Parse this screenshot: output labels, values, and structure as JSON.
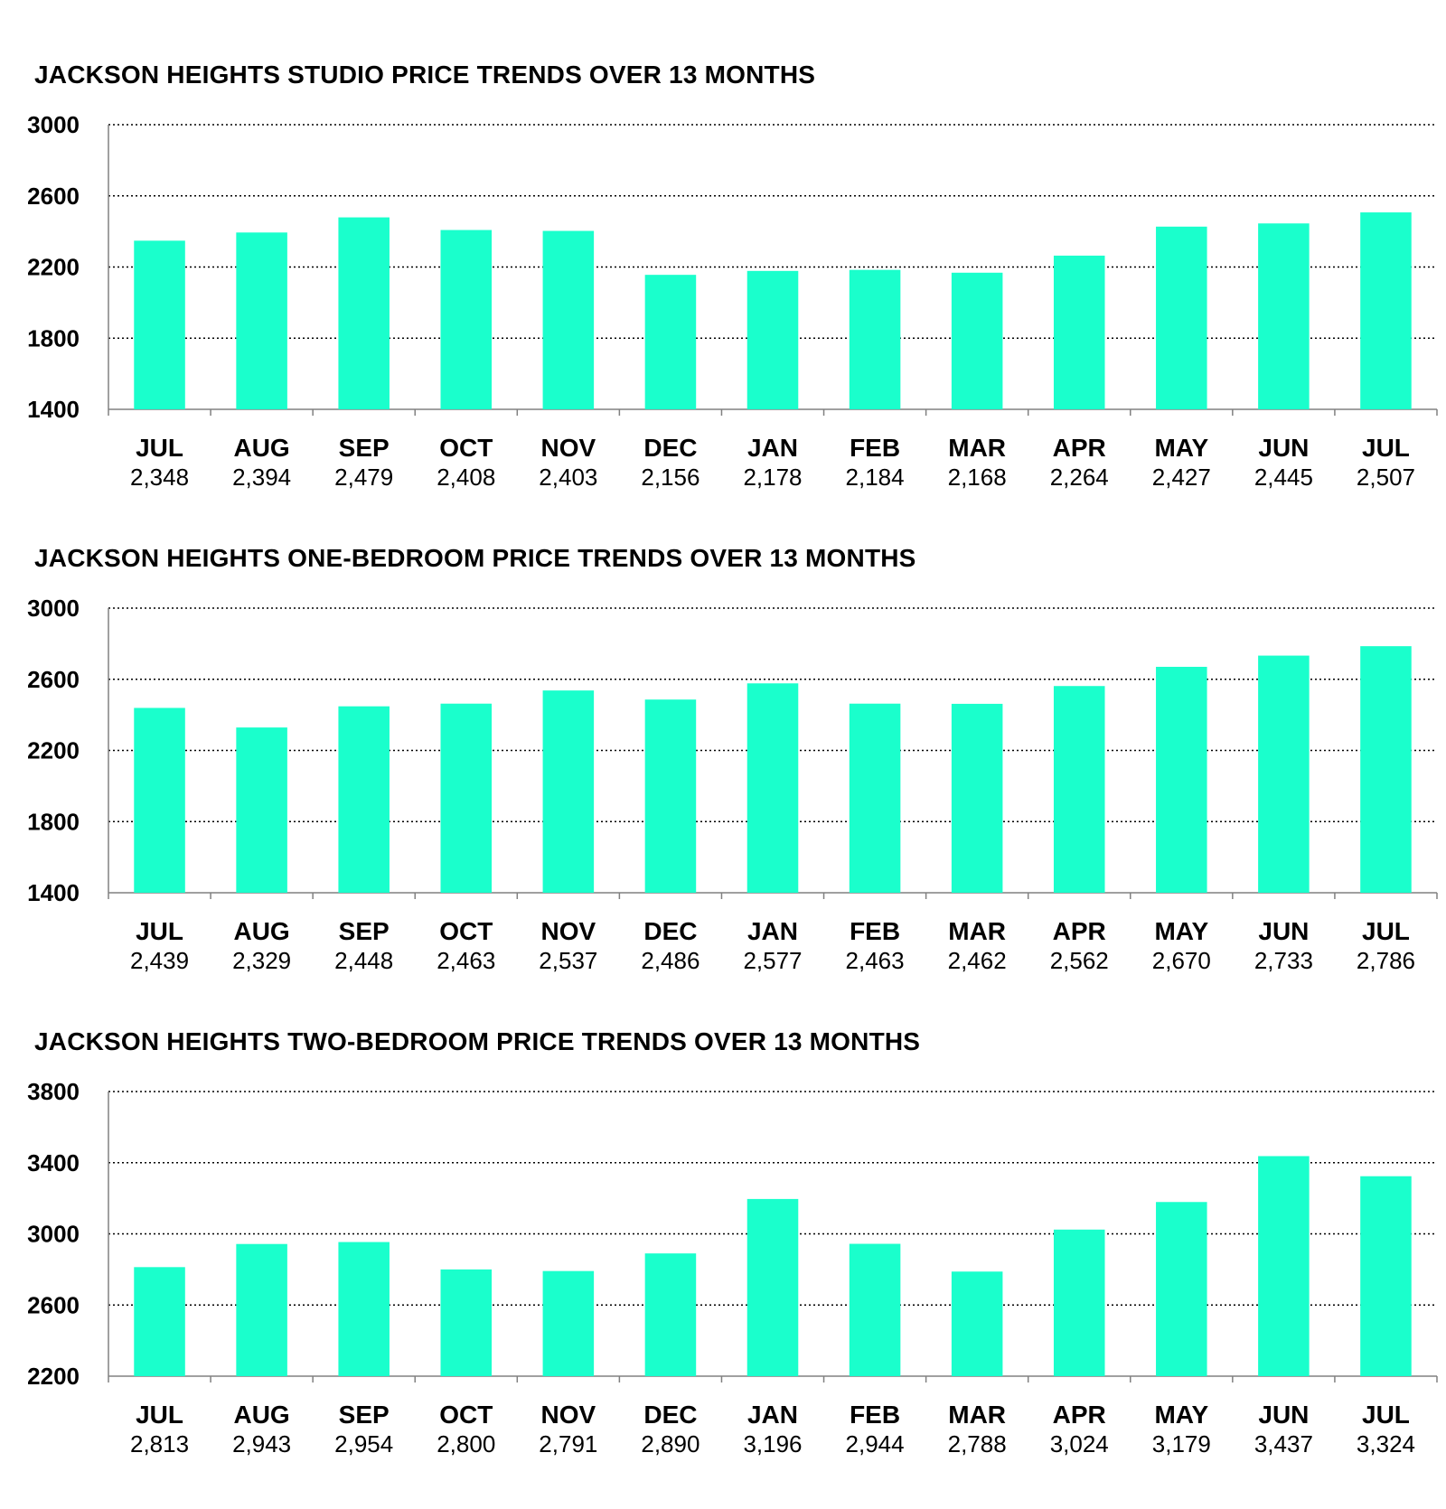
{
  "chart_data": [
    {
      "type": "bar",
      "title": "JACKSON HEIGHTS STUDIO PRICE TRENDS OVER 13 MONTHS",
      "categories": [
        "JUL",
        "AUG",
        "SEP",
        "OCT",
        "NOV",
        "DEC",
        "JAN",
        "FEB",
        "MAR",
        "APR",
        "MAY",
        "JUN",
        "JUL"
      ],
      "values": [
        2348,
        2394,
        2479,
        2408,
        2403,
        2156,
        2178,
        2184,
        2168,
        2264,
        2427,
        2445,
        2507
      ],
      "value_labels": [
        "2,348",
        "2,394",
        "2,479",
        "2,408",
        "2,403",
        "2,156",
        "2,178",
        "2,184",
        "2,168",
        "2,264",
        "2,427",
        "2,445",
        "2,507"
      ],
      "yticks": [
        3000,
        2600,
        2200,
        1800,
        1400
      ],
      "ylim": [
        1400,
        3000
      ],
      "grid": true,
      "legend": "none"
    },
    {
      "type": "bar",
      "title": "JACKSON HEIGHTS ONE-BEDROOM PRICE TRENDS OVER 13 MONTHS",
      "categories": [
        "JUL",
        "AUG",
        "SEP",
        "OCT",
        "NOV",
        "DEC",
        "JAN",
        "FEB",
        "MAR",
        "APR",
        "MAY",
        "JUN",
        "JUL"
      ],
      "values": [
        2439,
        2329,
        2448,
        2463,
        2537,
        2486,
        2577,
        2463,
        2462,
        2562,
        2670,
        2733,
        2786
      ],
      "value_labels": [
        "2,439",
        "2,329",
        "2,448",
        "2,463",
        "2,537",
        "2,486",
        "2,577",
        "2,463",
        "2,462",
        "2,562",
        "2,670",
        "2,733",
        "2,786"
      ],
      "yticks": [
        3000,
        2600,
        2200,
        1800,
        1400
      ],
      "ylim": [
        1400,
        3000
      ],
      "grid": true,
      "legend": "none"
    },
    {
      "type": "bar",
      "title": "JACKSON HEIGHTS TWO-BEDROOM PRICE TRENDS OVER 13 MONTHS",
      "categories": [
        "JUL",
        "AUG",
        "SEP",
        "OCT",
        "NOV",
        "DEC",
        "JAN",
        "FEB",
        "MAR",
        "APR",
        "MAY",
        "JUN",
        "JUL"
      ],
      "values": [
        2813,
        2943,
        2954,
        2800,
        2791,
        2890,
        3196,
        2944,
        2788,
        3024,
        3179,
        3437,
        3324
      ],
      "value_labels": [
        "2,813",
        "2,943",
        "2,954",
        "2,800",
        "2,791",
        "2,890",
        "3,196",
        "2,944",
        "2,788",
        "3,024",
        "3,179",
        "3,437",
        "3,324"
      ],
      "yticks": [
        3800,
        3400,
        3000,
        2600,
        2200
      ],
      "ylim": [
        2200,
        3800
      ],
      "grid": true,
      "legend": "none"
    }
  ],
  "colors": {
    "bar": "#1affcc",
    "grid": "#000000",
    "axis": "#808080"
  }
}
